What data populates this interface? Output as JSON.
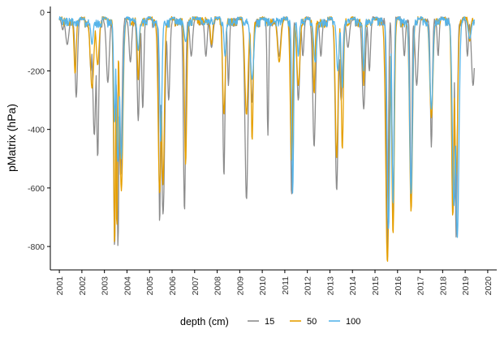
{
  "chart_data": {
    "type": "line",
    "title": "",
    "xlabel": "",
    "ylabel": "pMatrix (hPa)",
    "xlim": [
      2000.6,
      2020.4
    ],
    "ylim": [
      -880,
      20
    ],
    "x_ticks": [
      2001,
      2002,
      2003,
      2004,
      2005,
      2006,
      2007,
      2008,
      2009,
      2010,
      2011,
      2012,
      2013,
      2014,
      2015,
      2016,
      2017,
      2018,
      2019,
      2020
    ],
    "y_ticks": [
      0,
      -200,
      -400,
      -600,
      -800
    ],
    "grid": false,
    "legend": {
      "title": "depth (cm)",
      "position": "bottom"
    },
    "baseline_by_year": [
      -25,
      -30,
      -28,
      -25,
      -30,
      -25,
      -22,
      -26,
      -28,
      -25,
      -28,
      -30,
      -26,
      -28,
      -25,
      -28,
      -26,
      -25,
      -25
    ],
    "series": [
      {
        "name": "15",
        "color": "#8c8c8c",
        "dips": [
          [
            2001.15,
            -60
          ],
          [
            2001.35,
            -110
          ],
          [
            2001.75,
            -290
          ],
          [
            2002.4,
            -200
          ],
          [
            2002.55,
            -420
          ],
          [
            2002.7,
            -495
          ],
          [
            2003.15,
            -240
          ],
          [
            2003.45,
            -805
          ],
          [
            2003.6,
            -800
          ],
          [
            2003.72,
            -560
          ],
          [
            2004.15,
            -170
          ],
          [
            2004.5,
            -370
          ],
          [
            2004.7,
            -330
          ],
          [
            2005.45,
            -725
          ],
          [
            2005.6,
            -690
          ],
          [
            2005.85,
            -300
          ],
          [
            2006.55,
            -680
          ],
          [
            2006.85,
            -150
          ],
          [
            2007.5,
            -150
          ],
          [
            2007.75,
            -120
          ],
          [
            2008.3,
            -560
          ],
          [
            2008.5,
            -250
          ],
          [
            2009.3,
            -640
          ],
          [
            2009.55,
            -310
          ],
          [
            2010.25,
            -420
          ],
          [
            2010.75,
            -150
          ],
          [
            2011.3,
            -630
          ],
          [
            2011.6,
            -300
          ],
          [
            2011.8,
            -150
          ],
          [
            2012.3,
            -460
          ],
          [
            2012.6,
            -150
          ],
          [
            2013.3,
            -610
          ],
          [
            2013.5,
            -300
          ],
          [
            2013.8,
            -120
          ],
          [
            2014.5,
            -330
          ],
          [
            2014.75,
            -200
          ],
          [
            2015.55,
            -850
          ],
          [
            2015.8,
            -700
          ],
          [
            2016.3,
            -150
          ],
          [
            2016.6,
            -670
          ],
          [
            2016.85,
            -250
          ],
          [
            2017.5,
            -460
          ],
          [
            2017.8,
            -150
          ],
          [
            2018.45,
            -690
          ],
          [
            2018.6,
            -770
          ],
          [
            2019.1,
            -150
          ],
          [
            2019.35,
            -250
          ]
        ]
      },
      {
        "name": "50",
        "color": "#e69f00",
        "dips": [
          [
            2001.7,
            -210
          ],
          [
            2002.45,
            -260
          ],
          [
            2002.7,
            -180
          ],
          [
            2003.45,
            -800
          ],
          [
            2003.55,
            -740
          ],
          [
            2003.75,
            -610
          ],
          [
            2004.5,
            -230
          ],
          [
            2005.45,
            -620
          ],
          [
            2005.6,
            -590
          ],
          [
            2006.6,
            -520
          ],
          [
            2007.75,
            -110
          ],
          [
            2008.3,
            -350
          ],
          [
            2009.3,
            -350
          ],
          [
            2009.55,
            -440
          ],
          [
            2010.75,
            -170
          ],
          [
            2011.3,
            -510
          ],
          [
            2011.6,
            -250
          ],
          [
            2012.3,
            -280
          ],
          [
            2013.3,
            -500
          ],
          [
            2013.55,
            -470
          ],
          [
            2014.5,
            -250
          ],
          [
            2015.55,
            -855
          ],
          [
            2015.8,
            -760
          ],
          [
            2016.6,
            -680
          ],
          [
            2017.5,
            -360
          ],
          [
            2018.45,
            -700
          ],
          [
            2018.6,
            -560
          ],
          [
            2019.2,
            -100
          ]
        ]
      },
      {
        "name": "100",
        "color": "#56b4e9",
        "dips": [
          [
            2002.45,
            -110
          ],
          [
            2003.45,
            -380
          ],
          [
            2003.6,
            -510
          ],
          [
            2003.75,
            -500
          ],
          [
            2004.5,
            -130
          ],
          [
            2005.5,
            -440
          ],
          [
            2006.6,
            -100
          ],
          [
            2008.35,
            -150
          ],
          [
            2009.55,
            -230
          ],
          [
            2011.35,
            -620
          ],
          [
            2011.6,
            -150
          ],
          [
            2012.35,
            -170
          ],
          [
            2013.35,
            -200
          ],
          [
            2013.55,
            -260
          ],
          [
            2014.5,
            -200
          ],
          [
            2015.6,
            -740
          ],
          [
            2015.8,
            -660
          ],
          [
            2016.6,
            -620
          ],
          [
            2017.5,
            -330
          ],
          [
            2018.5,
            -660
          ],
          [
            2018.65,
            -770
          ],
          [
            2019.2,
            -90
          ]
        ]
      }
    ]
  }
}
